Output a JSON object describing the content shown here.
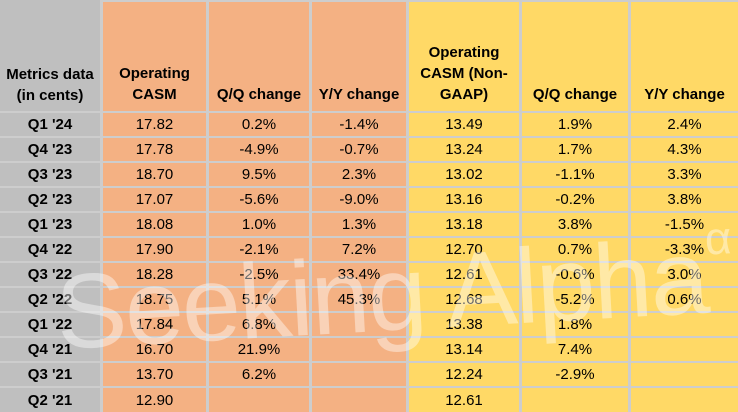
{
  "colors": {
    "row_label_bg": "#BFBFBF",
    "gaap_section_bg": "#F4B183",
    "non_gaap_section_bg": "#FFD966",
    "gridline": "#CDCDCD",
    "text": "#000000"
  },
  "watermark": {
    "text": "Seeking Alpha",
    "sup": "α"
  },
  "chart_data": {
    "type": "table",
    "title": "Operating CASM metrics (in cents)",
    "corner": [
      "Metrics data",
      "(in cents)"
    ],
    "columns": [
      "Operating CASM",
      "Q/Q change",
      "Y/Y change",
      "Operating CASM (Non-GAAP)",
      "Q/Q change",
      "Y/Y change"
    ],
    "column_groups": [
      {
        "name": "GAAP",
        "color": "#F4B183",
        "columns": [
          0,
          1,
          2
        ]
      },
      {
        "name": "Non-GAAP",
        "color": "#FFD966",
        "columns": [
          3,
          4,
          5
        ]
      }
    ],
    "rows": [
      [
        "Q1 '24",
        "17.82",
        "0.2%",
        "-1.4%",
        "13.49",
        "1.9%",
        "2.4%"
      ],
      [
        "Q4 '23",
        "17.78",
        "-4.9%",
        "-0.7%",
        "13.24",
        "1.7%",
        "4.3%"
      ],
      [
        "Q3 '23",
        "18.70",
        "9.5%",
        "2.3%",
        "13.02",
        "-1.1%",
        "3.3%"
      ],
      [
        "Q2 '23",
        "17.07",
        "-5.6%",
        "-9.0%",
        "13.16",
        "-0.2%",
        "3.8%"
      ],
      [
        "Q1 '23",
        "18.08",
        "1.0%",
        "1.3%",
        "13.18",
        "3.8%",
        "-1.5%"
      ],
      [
        "Q4 '22",
        "17.90",
        "-2.1%",
        "7.2%",
        "12.70",
        "0.7%",
        "-3.3%"
      ],
      [
        "Q3 '22",
        "18.28",
        "-2.5%",
        "33.4%",
        "12.61",
        "-0.6%",
        "3.0%"
      ],
      [
        "Q2 '22",
        "18.75",
        "5.1%",
        "45.3%",
        "12.68",
        "-5.2%",
        "0.6%"
      ],
      [
        "Q1 '22",
        "17.84",
        "6.8%",
        "",
        "13.38",
        "1.8%",
        ""
      ],
      [
        "Q4 '21",
        "16.70",
        "21.9%",
        "",
        "13.14",
        "7.4%",
        ""
      ],
      [
        "Q3 '21",
        "13.70",
        "6.2%",
        "",
        "12.24",
        "-2.9%",
        ""
      ],
      [
        "Q2 '21",
        "12.90",
        "",
        "",
        "12.61",
        "",
        ""
      ]
    ]
  }
}
